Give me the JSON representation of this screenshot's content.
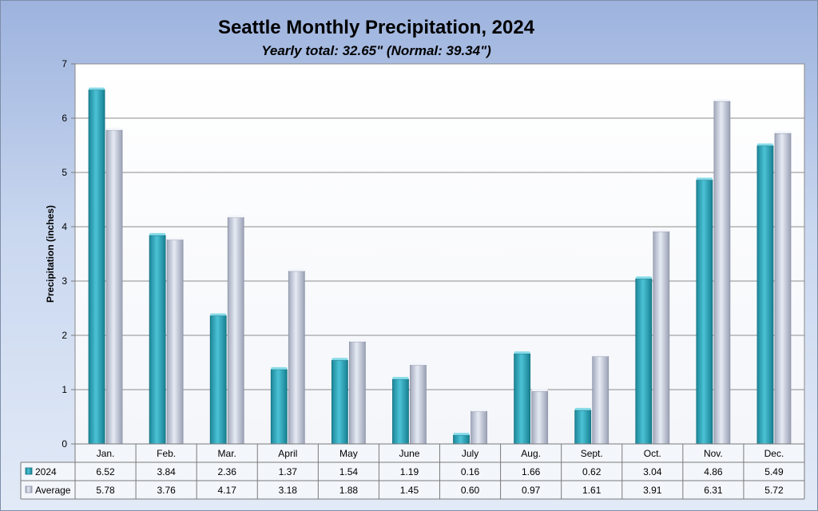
{
  "chart_data": {
    "type": "bar",
    "title": "Seattle Monthly Precipitation, 2024",
    "subtitle": "Yearly total: 32.65\" (Normal: 39.34\")",
    "ylabel": "Precipitation (inches)",
    "xlabel": "",
    "ylim": [
      0,
      7
    ],
    "yticks": [
      "0",
      "1",
      "2",
      "3",
      "4",
      "5",
      "6",
      "7"
    ],
    "grid": true,
    "legend_placement": "data-table",
    "categories": [
      "Jan.",
      "Feb.",
      "Mar.",
      "April",
      "May",
      "June",
      "July",
      "Aug.",
      "Sept.",
      "Oct.",
      "Nov.",
      "Dec."
    ],
    "series": [
      {
        "name": "2024",
        "color": "#3ab0c6",
        "values": [
          6.52,
          3.84,
          2.36,
          1.37,
          1.54,
          1.19,
          0.16,
          1.66,
          0.62,
          3.04,
          4.86,
          5.49
        ],
        "labels": [
          "6.52",
          "3.84",
          "2.36",
          "1.37",
          "1.54",
          "1.19",
          "0.16",
          "1.66",
          "0.62",
          "3.04",
          "4.86",
          "5.49"
        ]
      },
      {
        "name": "Average",
        "color": "#d4dbea",
        "values": [
          5.78,
          3.76,
          4.17,
          3.18,
          1.88,
          1.45,
          0.6,
          0.97,
          1.61,
          3.91,
          6.31,
          5.72
        ],
        "labels": [
          "5.78",
          "3.76",
          "4.17",
          "3.18",
          "1.88",
          "1.45",
          "0.60",
          "0.97",
          "1.61",
          "3.91",
          "6.31",
          "5.72"
        ]
      }
    ]
  }
}
